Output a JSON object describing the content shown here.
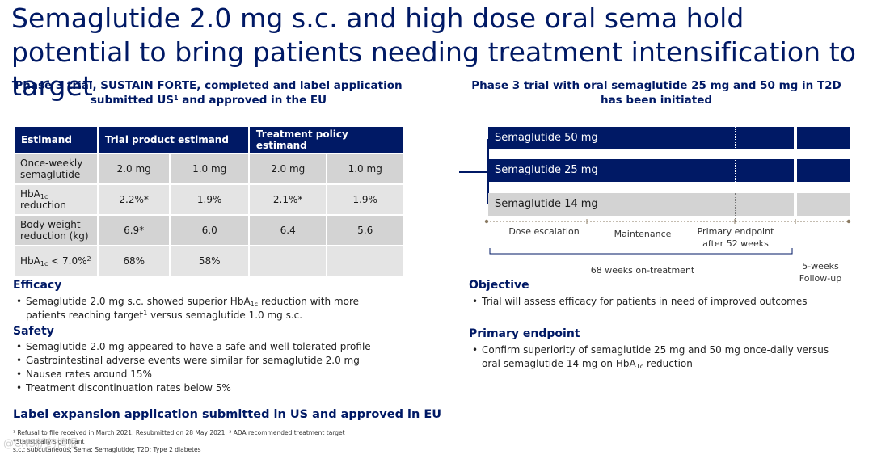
{
  "title": "Semaglutide 2.0 mg s.c. and high dose oral sema hold potential to bring patients needing treatment intensification to target",
  "left": {
    "subheading_line1": "Phase 3 trial, SUSTAIN FORTE, completed and label application",
    "subheading_line2_pre": "submitted US",
    "subheading_sup": "1",
    "subheading_line2_post": " and approved in the EU",
    "table": {
      "headers": [
        "Estimand",
        "Trial product estimand",
        "Treatment policy estimand"
      ],
      "rows": {
        "dose": {
          "label": "Once-weekly semaglutide",
          "values": [
            "2.0 mg",
            "1.0 mg",
            "2.0 mg",
            "1.0 mg"
          ]
        },
        "hba1c": {
          "label_pre": "HbA",
          "label_sub": "1c",
          "label_post": "reduction",
          "values": [
            "2.2%*",
            "1.9%",
            "2.1%*",
            "1.9%"
          ]
        },
        "weight": {
          "label": "Body weight reduction (kg)",
          "values": [
            "6.9*",
            "6.0",
            "6.4",
            "5.6"
          ]
        },
        "target": {
          "label_pre": "HbA",
          "label_sub": "1c",
          "label_mid": " < 7.0%",
          "label_sup": "2",
          "values": [
            "68%",
            "58%",
            "",
            ""
          ]
        }
      }
    },
    "efficacy": {
      "heading": "Efficacy",
      "item1_a": "Semaglutide 2.0 mg s.c. showed superior HbA",
      "item1_sub": "1c",
      "item1_b": " reduction with more patients reaching target",
      "item1_sup": "1",
      "item1_c": " versus semaglutide 1.0 mg s.c."
    },
    "safety": {
      "heading": "Safety",
      "items": [
        "Semaglutide 2.0 mg appeared to have a safe and well-tolerated profile",
        "Gastrointestinal adverse events were similar for semaglutide 2.0 mg",
        "Nausea rates around 15%",
        "Treatment discontinuation rates below 5%"
      ]
    },
    "label_heading": "Label expansion application submitted in US and approved in EU",
    "footnotes": {
      "line1": "¹ Refusal to file received in March 2021. Resubmitted on 28 May 2021; ² ADA recommended treatment target",
      "line2": "*Statistically significant",
      "line3": "s.c.: subcutaneous; Sema: Semaglutide; T2D: Type 2 diabetes"
    }
  },
  "right": {
    "subheading": "Phase 3 trial with oral semaglutide 25 mg and 50 mg in T2D has been initiated",
    "arms": [
      "Semaglutide 50 mg",
      "Semaglutide 25 mg",
      "Semaglutide 14 mg"
    ],
    "phases": {
      "dose_escalation": "Dose escalation",
      "maintenance": "Maintenance",
      "primary_endpoint_line1": "Primary endpoint",
      "primary_endpoint_line2": "after 52 weeks",
      "on_treatment": "68 weeks on-treatment",
      "follow_up_line1": "5-weeks",
      "follow_up_line2": "Follow-up"
    },
    "objective": {
      "heading": "Objective",
      "items": [
        "Trial will assess efficacy for patients in need of improved outcomes"
      ]
    },
    "primary_endpoint": {
      "heading": "Primary endpoint",
      "item_a": "Confirm superiority of semaglutide 25 mg and 50 mg once-daily versus oral semaglutide 14 mg on HbA",
      "item_sub": "1c",
      "item_b": " reduction"
    }
  },
  "watermark": "@CNS新药情报",
  "colors": {
    "navy": "#001965",
    "grey_cell": "#e4e4e4",
    "grey_bar": "#d3d3d3"
  }
}
